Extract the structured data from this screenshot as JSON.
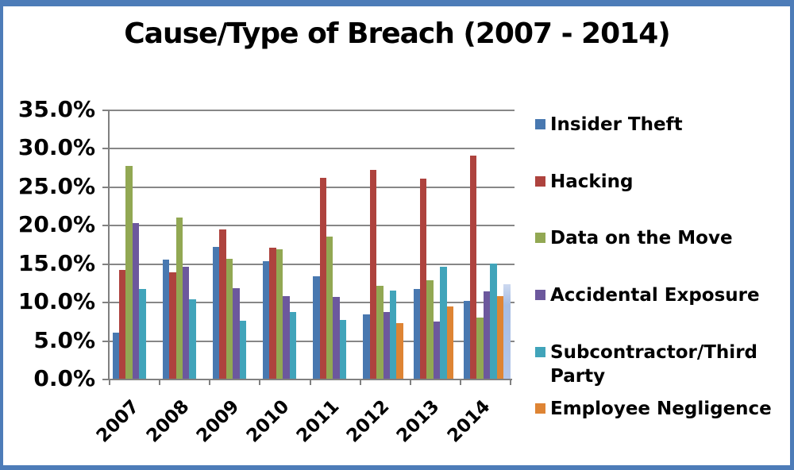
{
  "title": "Cause/Type of Breach (2007 - 2014)",
  "chart_data": {
    "type": "bar",
    "title": "Cause/Type of Breach (2007 - 2014)",
    "categories": [
      "2007",
      "2008",
      "2009",
      "2010",
      "2011",
      "2012",
      "2013",
      "2014"
    ],
    "series": [
      {
        "name": "Insider Theft",
        "color": "#4878B0",
        "in_legend": true,
        "values": [
          6.0,
          15.5,
          17.1,
          15.3,
          13.3,
          8.4,
          11.7,
          10.1
        ]
      },
      {
        "name": "Hacking",
        "color": "#AE433E",
        "in_legend": true,
        "values": [
          14.1,
          13.8,
          19.4,
          17.0,
          26.1,
          27.1,
          26.0,
          29.0
        ]
      },
      {
        "name": "Data on the Move",
        "color": "#92A853",
        "in_legend": true,
        "values": [
          27.6,
          20.9,
          15.6,
          16.8,
          18.5,
          12.1,
          12.8,
          7.9
        ]
      },
      {
        "name": "Accidental Exposure",
        "color": "#6C589D",
        "in_legend": true,
        "values": [
          20.2,
          14.5,
          11.8,
          10.7,
          10.6,
          8.7,
          7.4,
          11.3
        ]
      },
      {
        "name": "Subcontractor/Third Party",
        "color": "#41A4BA",
        "in_legend": true,
        "values": [
          11.7,
          10.3,
          7.5,
          8.7,
          7.6,
          11.4,
          14.5,
          14.9
        ]
      },
      {
        "name": "Employee Negligence",
        "color": "#DE8434",
        "in_legend": true,
        "values": [
          0,
          0,
          0,
          0,
          0,
          7.2,
          9.4,
          10.7
        ]
      },
      {
        "name": "",
        "color": "#A9C0E6",
        "in_legend": false,
        "values": [
          0,
          0,
          0,
          0,
          0,
          0,
          0,
          12.3
        ]
      }
    ],
    "xlabel": "",
    "ylabel": "",
    "ylim": [
      0,
      35
    ],
    "ytick_step": 5,
    "ytick_labels": [
      "0.0%",
      "5.0%",
      "10.0%",
      "15.0%",
      "20.0%",
      "25.0%",
      "30.0%",
      "35.0%"
    ],
    "grid": true,
    "legend_position": "right"
  },
  "colors": {
    "border": "#4D7CB8",
    "gridline": "#878787",
    "axis": "#808080",
    "text": "#000000"
  }
}
